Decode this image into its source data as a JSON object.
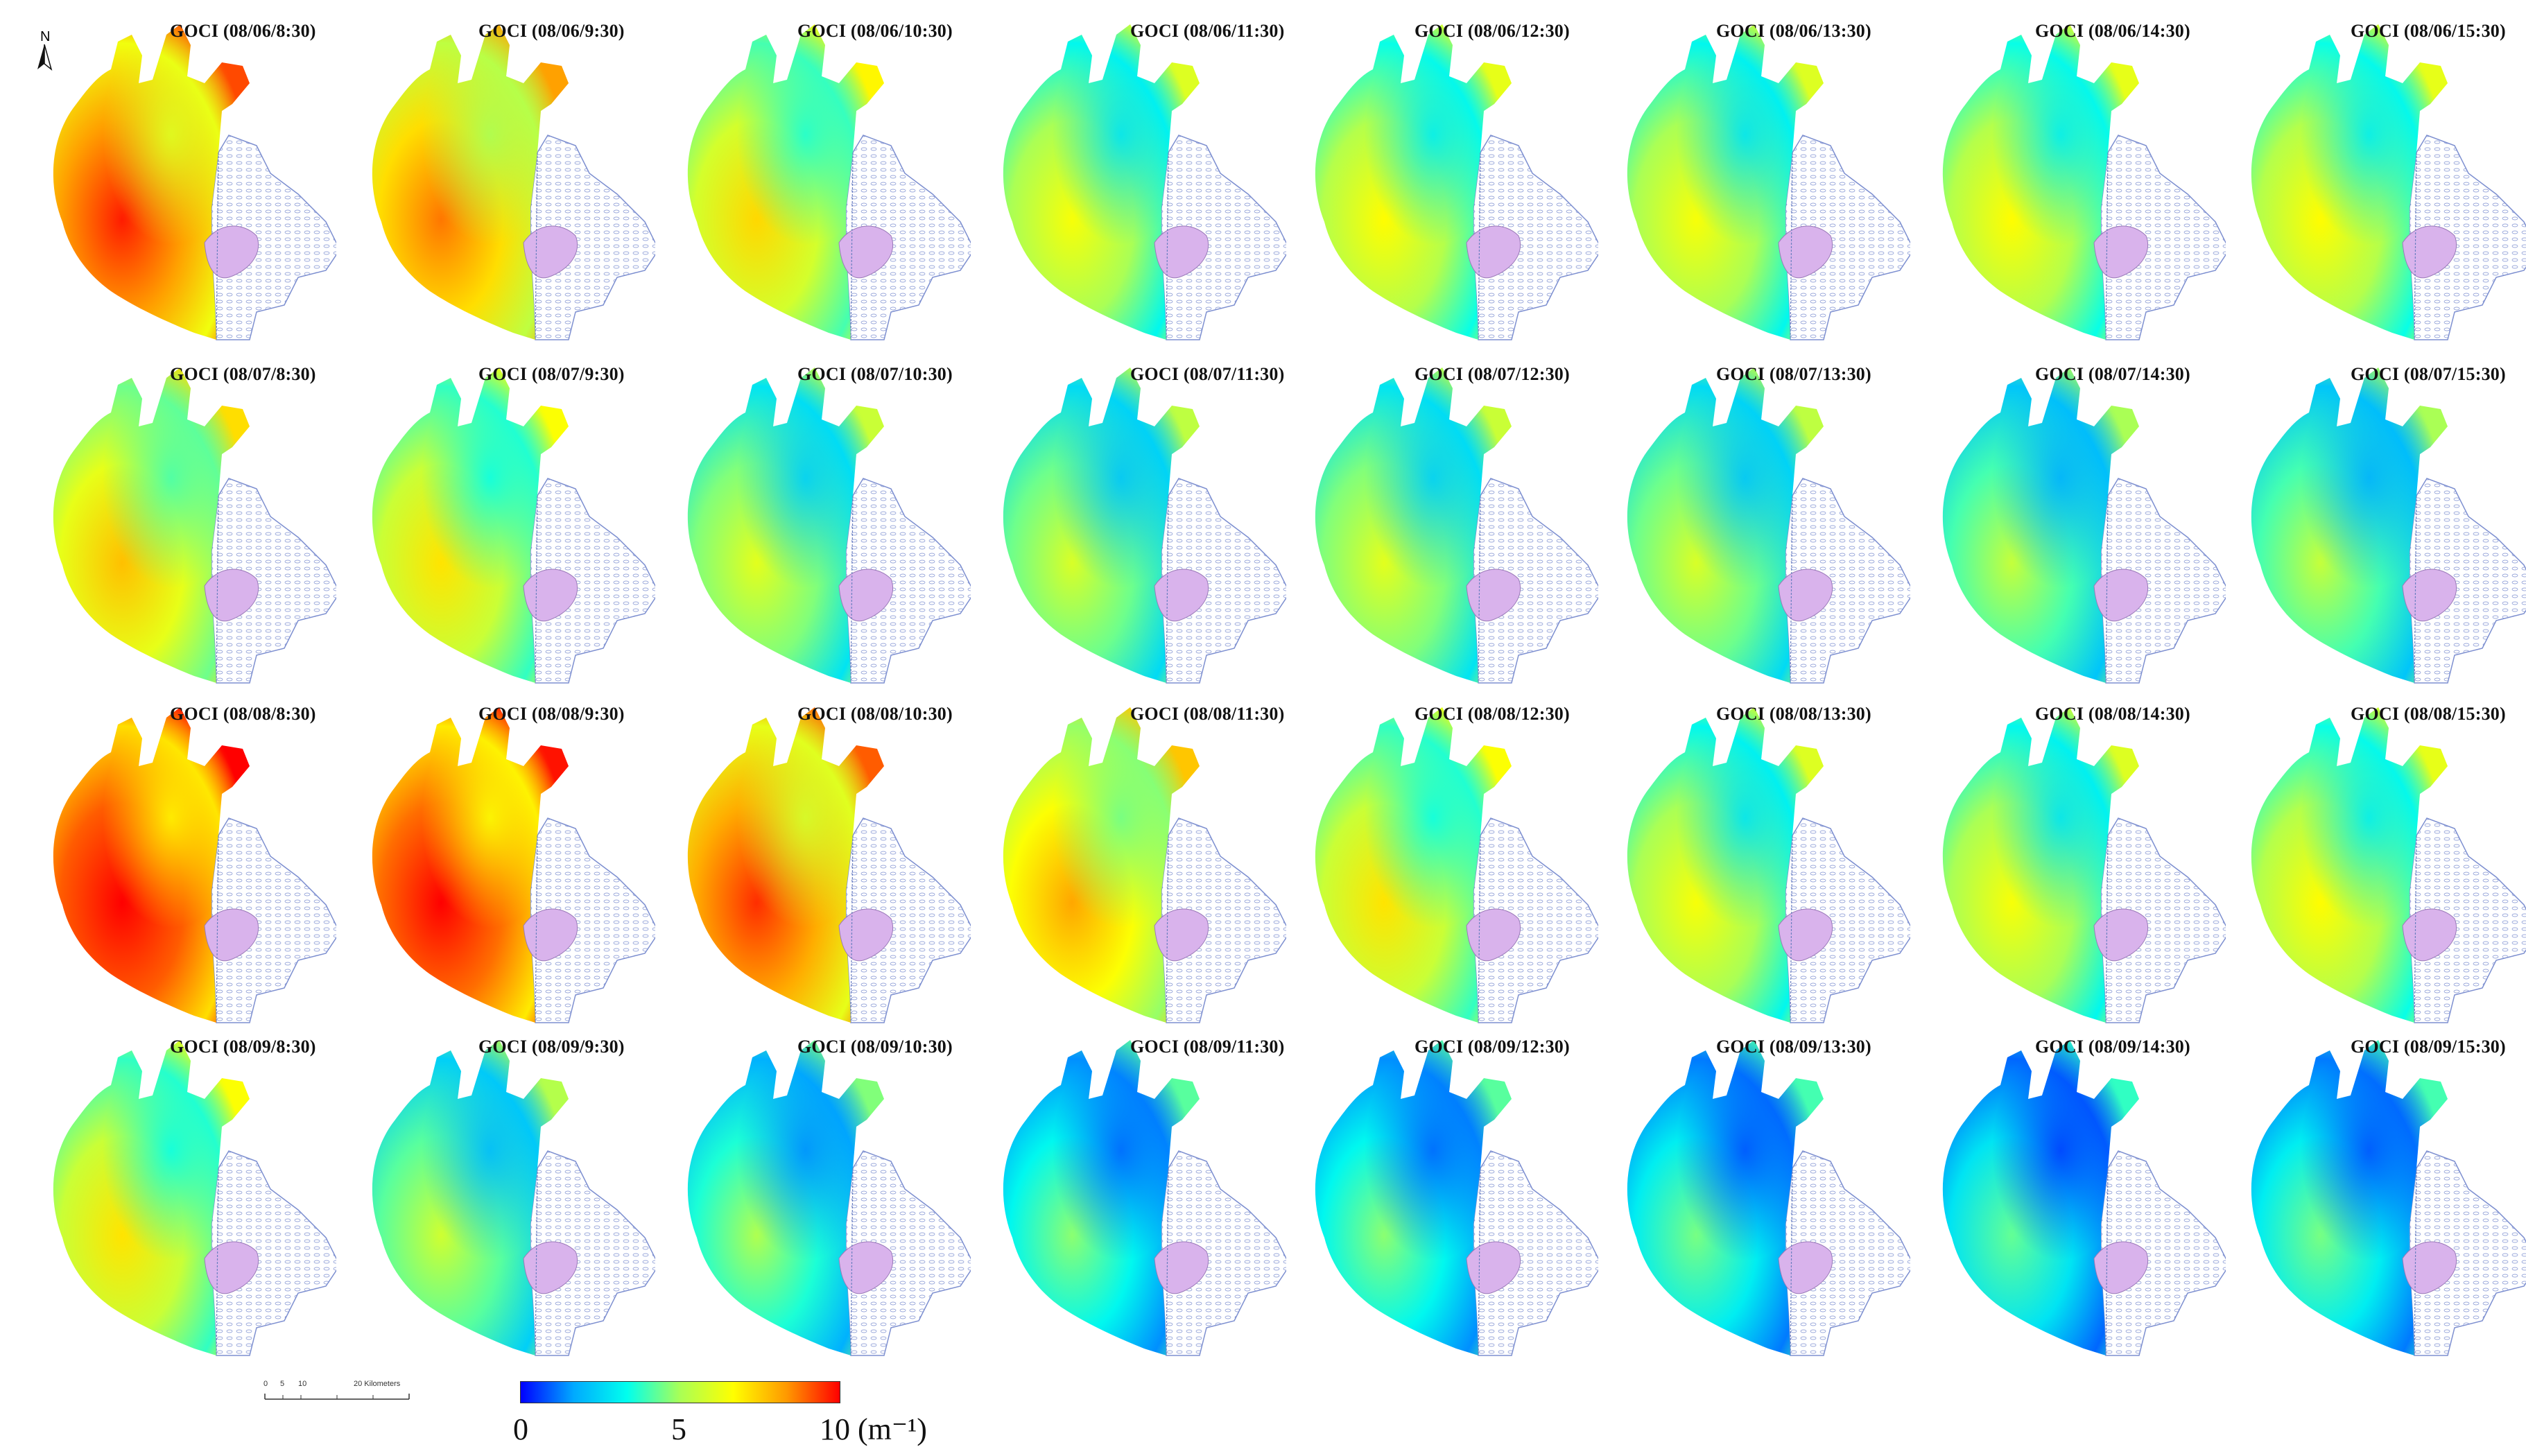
{
  "figure": {
    "north_label": "N",
    "scale": {
      "ticks": [
        "0",
        "5",
        "10",
        "20 Kilometers"
      ]
    },
    "colorbar": {
      "tick_labels": [
        "0",
        "5",
        "10 (m⁻¹)"
      ],
      "colors": [
        "#0000ff",
        "#00aaff",
        "#00ffee",
        "#aaff55",
        "#ffff00",
        "#ff9900",
        "#ff0000"
      ],
      "min": 0,
      "max": 10
    }
  },
  "colors": {
    "land": "#d9b3ec",
    "land_edge": "#9a7ab8",
    "cutout_edge": "#7d8fd0",
    "cutout_fill": "#f4f6ff"
  },
  "panels": [
    {
      "label": "GOCI (08/06/8:30)",
      "level": 0.82
    },
    {
      "label": "GOCI (08/06/9:30)",
      "level": 0.72
    },
    {
      "label": "GOCI (08/06/10:30)",
      "level": 0.58
    },
    {
      "label": "GOCI (08/06/11:30)",
      "level": 0.5
    },
    {
      "label": "GOCI (08/06/12:30)",
      "level": 0.52
    },
    {
      "label": "GOCI (08/06/13:30)",
      "level": 0.5
    },
    {
      "label": "GOCI (08/06/14:30)",
      "level": 0.52
    },
    {
      "label": "GOCI (08/06/15:30)",
      "level": 0.52
    },
    {
      "label": "GOCI (08/07/8:30)",
      "level": 0.62
    },
    {
      "label": "GOCI (08/07/9:30)",
      "level": 0.56
    },
    {
      "label": "GOCI (08/07/10:30)",
      "level": 0.46
    },
    {
      "label": "GOCI (08/07/11:30)",
      "level": 0.44
    },
    {
      "label": "GOCI (08/07/12:30)",
      "level": 0.46
    },
    {
      "label": "GOCI (08/07/13:30)",
      "level": 0.44
    },
    {
      "label": "GOCI (08/07/14:30)",
      "level": 0.4
    },
    {
      "label": "GOCI (08/07/15:30)",
      "level": 0.4
    },
    {
      "label": "GOCI (08/08/8:30)",
      "level": 0.9
    },
    {
      "label": "GOCI (08/08/9:30)",
      "level": 0.88
    },
    {
      "label": "GOCI (08/08/10:30)",
      "level": 0.8
    },
    {
      "label": "GOCI (08/08/11:30)",
      "level": 0.66
    },
    {
      "label": "GOCI (08/08/12:30)",
      "level": 0.56
    },
    {
      "label": "GOCI (08/08/13:30)",
      "level": 0.5
    },
    {
      "label": "GOCI (08/08/14:30)",
      "level": 0.5
    },
    {
      "label": "GOCI (08/08/15:30)",
      "level": 0.52
    },
    {
      "label": "GOCI (08/09/8:30)",
      "level": 0.56
    },
    {
      "label": "GOCI (08/09/9:30)",
      "level": 0.42
    },
    {
      "label": "GOCI (08/09/10:30)",
      "level": 0.36
    },
    {
      "label": "GOCI (08/09/11:30)",
      "level": 0.32
    },
    {
      "label": "GOCI (08/09/12:30)",
      "level": 0.32
    },
    {
      "label": "GOCI (08/09/13:30)",
      "level": 0.3
    },
    {
      "label": "GOCI (08/09/14:30)",
      "level": 0.28
    },
    {
      "label": "GOCI (08/09/15:30)",
      "level": 0.3
    }
  ]
}
